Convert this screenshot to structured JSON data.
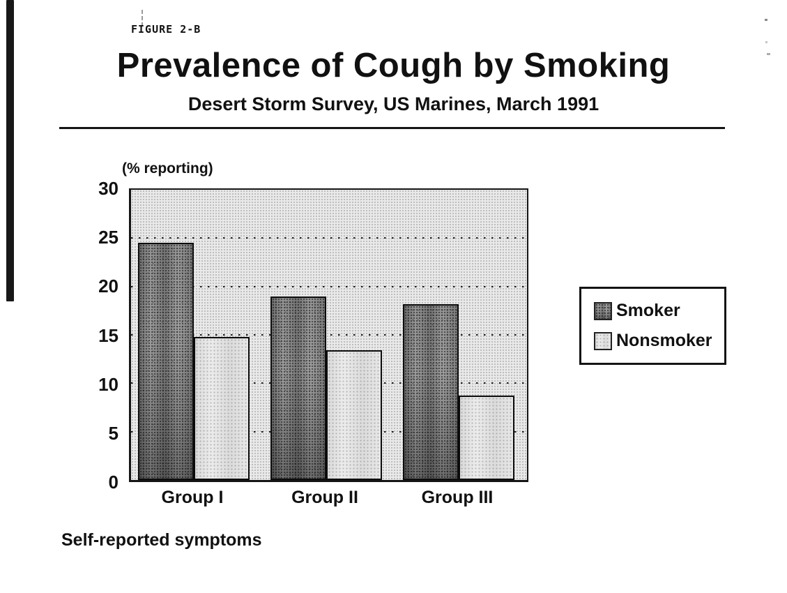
{
  "page": {
    "figure_label": "FIGURE 2-B",
    "title": "Prevalence of Cough by Smoking",
    "subtitle": "Desert Storm Survey, US Marines, March 1991",
    "footnote": "Self-reported symptoms"
  },
  "chart_data": {
    "type": "bar",
    "title": "Prevalence of Cough by Smoking",
    "subtitle": "Desert Storm Survey, US Marines, March 1991",
    "axis_top_label": "(% reporting)",
    "categories": [
      "Group I",
      "Group II",
      "Group III"
    ],
    "series": [
      {
        "name": "Smoker",
        "values": [
          24.5,
          19.0,
          18.2
        ]
      },
      {
        "name": "Nonsmoker",
        "values": [
          14.8,
          13.4,
          8.7
        ]
      }
    ],
    "xlabel": "",
    "ylabel": "(% reporting)",
    "ylim": [
      0,
      30
    ],
    "yticks": [
      0,
      5,
      10,
      15,
      20,
      25,
      30
    ],
    "grid": "horizontal dotted gridlines at 5, 10, 15, 20, 25",
    "legend": {
      "position": "right",
      "entries": [
        "Smoker",
        "Nonsmoker"
      ]
    },
    "colors": {
      "smoker_fill": "#a4a4a4",
      "nonsmoker_fill": "#ececec",
      "plot_background": "#e9e9e9",
      "ink": "#111111"
    }
  }
}
